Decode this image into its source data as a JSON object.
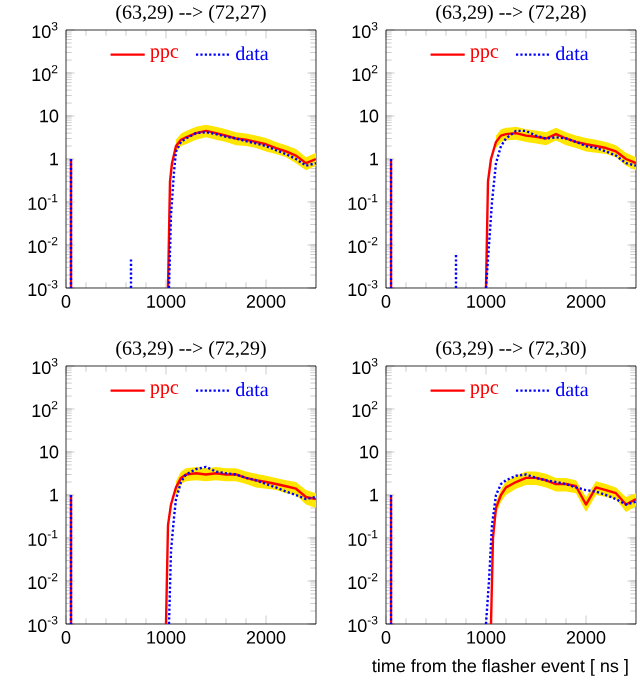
{
  "chart_data": [
    {
      "type": "line",
      "title": "(63,29) --> (72,27)",
      "log": "y",
      "legend": "top",
      "xlim": [
        0,
        2500
      ],
      "ylim": [
        0.001,
        1000
      ],
      "xticks": [
        0,
        1000,
        2000
      ],
      "yticks": [
        {
          "value": 0.001,
          "label": "10$^{-3}$"
        },
        {
          "value": 0.01,
          "label": "10$^{-2}$"
        },
        {
          "value": 0.1,
          "label": "10$^{-1}$"
        },
        1,
        10,
        {
          "value": 100,
          "label": "10$^{2}$"
        },
        {
          "value": 1000,
          "label": "10$^{3}$"
        }
      ],
      "series": [
        {
          "name": "ppc",
          "color": "#ff0000",
          "line_style": "solid",
          "x": [
            50,
            50,
            500,
            1020,
            1040,
            1060,
            1100,
            1150,
            1200,
            1300,
            1400,
            1500,
            1600,
            1700,
            1800,
            1900,
            2000,
            2100,
            2200,
            2300,
            2400,
            2500
          ],
          "values": [
            1,
            0.001,
            null,
            0.001,
            0.3,
            0.8,
            2,
            2.8,
            3.2,
            4,
            4.5,
            4,
            3.5,
            3,
            2.8,
            2.5,
            2.2,
            1.8,
            1.5,
            1.2,
            0.8,
            1
          ],
          "lower": [
            null,
            null,
            null,
            null,
            null,
            null,
            1.4,
            2,
            2.2,
            2.8,
            3.2,
            2.8,
            2.5,
            2.1,
            2,
            1.8,
            1.5,
            1.3,
            1.1,
            0.8,
            0.55,
            0.7
          ],
          "upper": [
            null,
            null,
            null,
            null,
            null,
            null,
            2.8,
            3.9,
            4.5,
            5.6,
            6.3,
            5.6,
            4.9,
            4.2,
            3.9,
            3.5,
            3.1,
            2.5,
            2.1,
            1.7,
            1.1,
            1.4
          ]
        },
        {
          "name": "data",
          "color": "#0000ff",
          "line_style": "dotted",
          "x": [
            50,
            50,
            300,
            650,
            650,
            800,
            1030,
            1050,
            1080,
            1100,
            1150,
            1200,
            1300,
            1400,
            1500,
            1600,
            1700,
            1800,
            1900,
            2000,
            2100,
            2200,
            2300,
            2400,
            2500
          ],
          "values": [
            1,
            0.001,
            null,
            0.001,
            0.005,
            null,
            0.001,
            0.05,
            0.5,
            1.5,
            2.5,
            3,
            4,
            4.2,
            3.8,
            3.3,
            3,
            2.6,
            2.3,
            2,
            1.6,
            1.3,
            1,
            0.7,
            0.8
          ]
        }
      ]
    },
    {
      "type": "line",
      "title": "(63,29) --> (72,28)",
      "log": "y",
      "legend": "top",
      "xlim": [
        0,
        2500
      ],
      "ylim": [
        0.001,
        1000
      ],
      "xticks": [
        0,
        1000,
        2000
      ],
      "yticks": [
        {
          "value": 0.001,
          "label": "10$^{-3}$"
        },
        {
          "value": 0.01,
          "label": "10$^{-2}$"
        },
        {
          "value": 0.1,
          "label": "10$^{-1}$"
        },
        1,
        10,
        {
          "value": 100,
          "label": "10$^{2}$"
        },
        {
          "value": 1000,
          "label": "10$^{3}$"
        }
      ],
      "series": [
        {
          "name": "ppc",
          "color": "#ff0000",
          "line_style": "solid",
          "x": [
            50,
            50,
            500,
            1000,
            1020,
            1050,
            1100,
            1150,
            1200,
            1300,
            1400,
            1500,
            1600,
            1700,
            1800,
            1900,
            2000,
            2100,
            2200,
            2300,
            2400,
            2500
          ],
          "values": [
            1,
            0.001,
            null,
            0.001,
            0.3,
            1,
            2.5,
            3.5,
            3.8,
            4,
            3.5,
            3.3,
            3,
            3.8,
            3,
            2.5,
            2.2,
            2,
            1.8,
            1.5,
            1,
            0.8
          ],
          "lower": [
            null,
            null,
            null,
            null,
            null,
            null,
            1.8,
            2.5,
            2.7,
            2.8,
            2.5,
            2.3,
            2.1,
            2.7,
            2.1,
            1.8,
            1.5,
            1.4,
            1.3,
            1.1,
            0.7,
            0.55
          ],
          "upper": [
            null,
            null,
            null,
            null,
            null,
            null,
            3.5,
            4.9,
            5.3,
            5.6,
            4.9,
            4.6,
            4.2,
            5.3,
            4.2,
            3.5,
            3.1,
            2.8,
            2.5,
            2.1,
            1.4,
            1.1
          ]
        },
        {
          "name": "data",
          "color": "#0000ff",
          "line_style": "dotted",
          "x": [
            50,
            50,
            300,
            700,
            700,
            850,
            1000,
            1030,
            1060,
            1100,
            1150,
            1200,
            1300,
            1400,
            1500,
            1600,
            1700,
            1800,
            1900,
            2000,
            2100,
            2200,
            2300,
            2400,
            2500
          ],
          "values": [
            1,
            0.001,
            null,
            0.001,
            0.006,
            null,
            0.001,
            0.01,
            0.1,
            0.8,
            2,
            3,
            4.5,
            4.5,
            3.5,
            3,
            3.2,
            3,
            2.5,
            2,
            1.8,
            1.5,
            1.2,
            0.8,
            0.7
          ]
        }
      ]
    },
    {
      "type": "line",
      "title": "(63,29) --> (72,29)",
      "log": "y",
      "legend": "top",
      "xlim": [
        0,
        2500
      ],
      "ylim": [
        0.001,
        1000
      ],
      "xticks": [
        0,
        1000,
        2000
      ],
      "yticks": [
        {
          "value": 0.001,
          "label": "10$^{-3}$"
        },
        {
          "value": 0.01,
          "label": "10$^{-2}$"
        },
        {
          "value": 0.1,
          "label": "10$^{-1}$"
        },
        1,
        10,
        {
          "value": 100,
          "label": "10$^{2}$"
        },
        {
          "value": 1000,
          "label": "10$^{3}$"
        }
      ],
      "series": [
        {
          "name": "ppc",
          "color": "#ff0000",
          "line_style": "solid",
          "x": [
            50,
            50,
            500,
            1000,
            1020,
            1050,
            1100,
            1150,
            1200,
            1300,
            1400,
            1500,
            1600,
            1700,
            1800,
            1900,
            2000,
            2100,
            2200,
            2300,
            2400,
            2500
          ],
          "values": [
            1,
            0.001,
            null,
            0.001,
            0.2,
            0.6,
            1.5,
            2.5,
            3,
            3.2,
            3,
            3.2,
            3,
            3,
            2.5,
            2.2,
            2,
            1.8,
            1.6,
            1.4,
            0.9,
            0.8
          ],
          "lower": [
            null,
            null,
            null,
            null,
            null,
            null,
            1,
            1.8,
            2.1,
            2.2,
            2.1,
            2.2,
            2.1,
            2.1,
            1.8,
            1.5,
            1.4,
            1.3,
            1.1,
            1,
            0.6,
            0.5
          ],
          "upper": [
            null,
            null,
            null,
            null,
            null,
            null,
            2.1,
            3.5,
            4.2,
            4.5,
            4.2,
            4.5,
            4.2,
            4.2,
            3.5,
            3.1,
            2.8,
            2.5,
            2.2,
            2,
            1.3,
            1.1
          ]
        },
        {
          "name": "data",
          "color": "#0000ff",
          "line_style": "dotted",
          "x": [
            50,
            50,
            500,
            1030,
            1050,
            1080,
            1100,
            1150,
            1200,
            1300,
            1400,
            1500,
            1600,
            1700,
            1800,
            1900,
            2000,
            2100,
            2200,
            2300,
            2400,
            2500
          ],
          "values": [
            1,
            0.001,
            null,
            0.001,
            0.05,
            0.3,
            0.8,
            2,
            3,
            4,
            4.5,
            3.5,
            3.2,
            3,
            2.5,
            2.2,
            1.8,
            1.5,
            1.2,
            1,
            0.8,
            0.9
          ]
        }
      ]
    },
    {
      "type": "line",
      "title": "(63,29) --> (72,30)",
      "xlabel": "time from the flasher event [ ns ]",
      "log": "y",
      "legend": "top",
      "xlim": [
        0,
        2500
      ],
      "ylim": [
        0.001,
        1000
      ],
      "xticks": [
        0,
        1000,
        2000
      ],
      "yticks": [
        {
          "value": 0.001,
          "label": "10$^{-3}$"
        },
        {
          "value": 0.01,
          "label": "10$^{-2}$"
        },
        {
          "value": 0.1,
          "label": "10$^{-1}$"
        },
        1,
        10,
        {
          "value": 100,
          "label": "10$^{2}$"
        },
        {
          "value": 1000,
          "label": "10$^{3}$"
        }
      ],
      "series": [
        {
          "name": "ppc",
          "color": "#ff0000",
          "line_style": "solid",
          "x": [
            50,
            50,
            500,
            1050,
            1070,
            1100,
            1150,
            1200,
            1300,
            1400,
            1500,
            1600,
            1700,
            1800,
            1900,
            2000,
            2100,
            2200,
            2300,
            2400,
            2500
          ],
          "values": [
            1,
            0.001,
            null,
            0.001,
            0.1,
            0.5,
            1,
            1.5,
            2,
            2.5,
            2.5,
            2.2,
            1.8,
            1.8,
            1.6,
            0.6,
            1.5,
            1.3,
            1.1,
            0.6,
            0.8
          ],
          "lower": [
            null,
            null,
            null,
            null,
            null,
            0.35,
            0.7,
            1,
            1.4,
            1.7,
            1.7,
            1.5,
            1.2,
            1.2,
            1.1,
            0.4,
            1,
            0.9,
            0.8,
            0.4,
            0.55
          ],
          "upper": [
            null,
            null,
            null,
            null,
            null,
            0.7,
            1.4,
            2.1,
            2.8,
            3.5,
            3.5,
            3.1,
            2.5,
            2.5,
            2.2,
            0.9,
            2.1,
            1.8,
            1.5,
            0.9,
            1.1
          ]
        },
        {
          "name": "data",
          "color": "#0000ff",
          "line_style": "dotted",
          "x": [
            50,
            50,
            500,
            1000,
            1030,
            1060,
            1100,
            1150,
            1200,
            1300,
            1400,
            1500,
            1600,
            1700,
            1800,
            1900,
            2000,
            2100,
            2200,
            2300,
            2400,
            2500
          ],
          "values": [
            1,
            0.001,
            null,
            0.001,
            0.01,
            0.2,
            1,
            1.8,
            2.2,
            2.8,
            3,
            2.5,
            2.2,
            2,
            1.8,
            1.5,
            1.3,
            1.2,
            1,
            0.8,
            0.6,
            0.7
          ]
        }
      ]
    }
  ]
}
